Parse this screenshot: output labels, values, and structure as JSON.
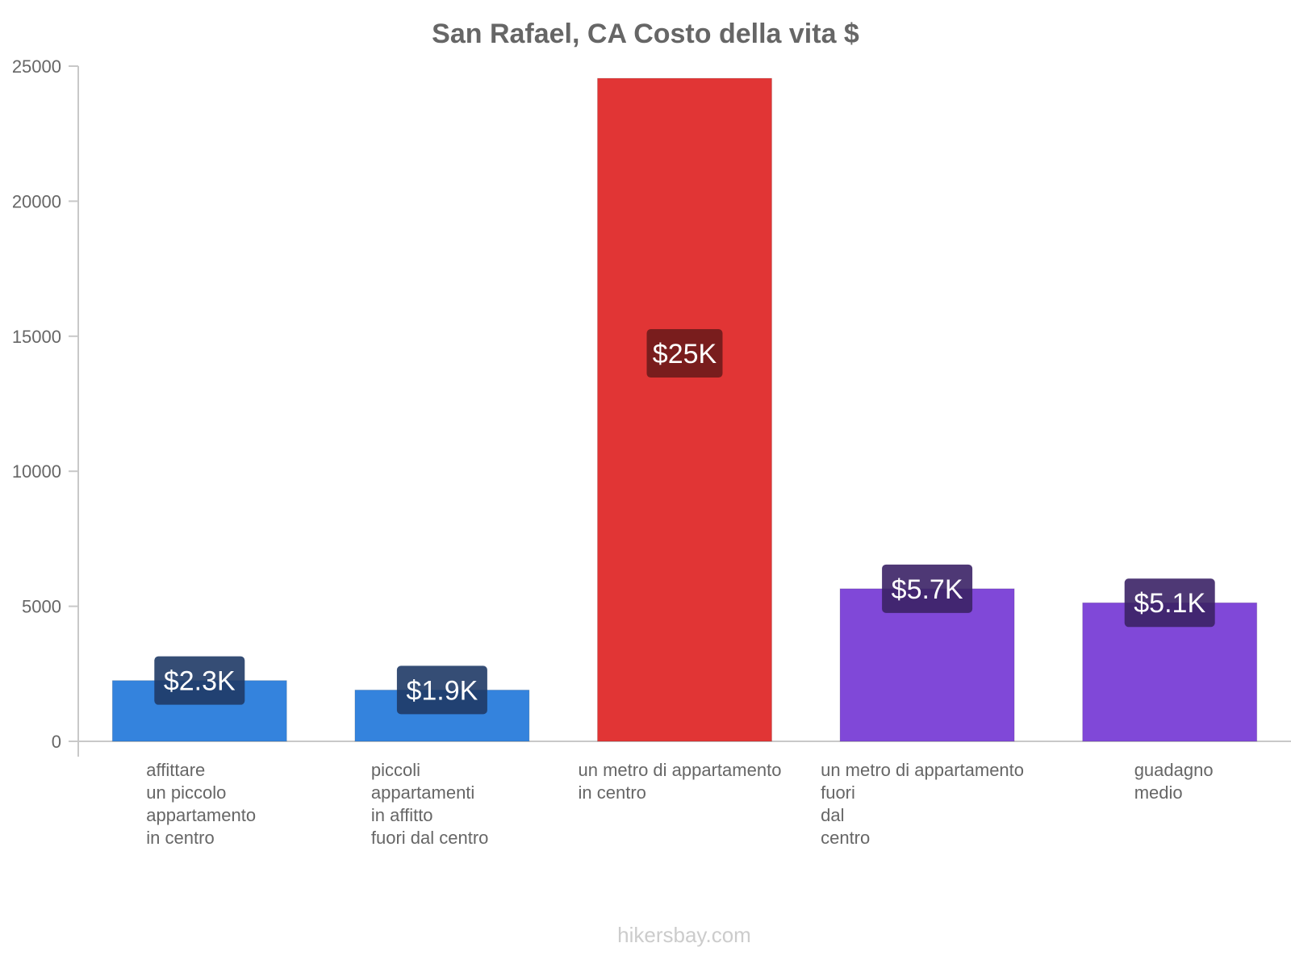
{
  "chart_data": {
    "type": "bar",
    "title": "San Rafael, CA Costo della vita $",
    "ylim": [
      0,
      25000
    ],
    "yticks": [
      0,
      5000,
      10000,
      15000,
      20000,
      25000
    ],
    "categories": [
      [
        "affittare",
        "un piccolo",
        "appartamento",
        "in centro"
      ],
      [
        "piccoli",
        "appartamenti",
        "in affitto",
        "fuori dal centro"
      ],
      [
        "un metro di appartamento",
        "in centro"
      ],
      [
        "un metro di appartamento",
        "fuori",
        "dal",
        "centro"
      ],
      [
        "guadagno",
        "medio"
      ]
    ],
    "values": [
      2250,
      1900,
      24550,
      5650,
      5130
    ],
    "data_labels": [
      "$2.3K",
      "$1.9K",
      "$25K",
      "$5.7K",
      "$5.1K"
    ],
    "colors": [
      "#3483dd",
      "#3483dd",
      "#e13535",
      "#8048d8",
      "#8048d8"
    ],
    "label_bg_colors": [
      "#1f3a66",
      "#1f3a66",
      "#6e1b1b",
      "#3b2266",
      "#3b2266"
    ]
  },
  "footer": "hikersbay.com"
}
